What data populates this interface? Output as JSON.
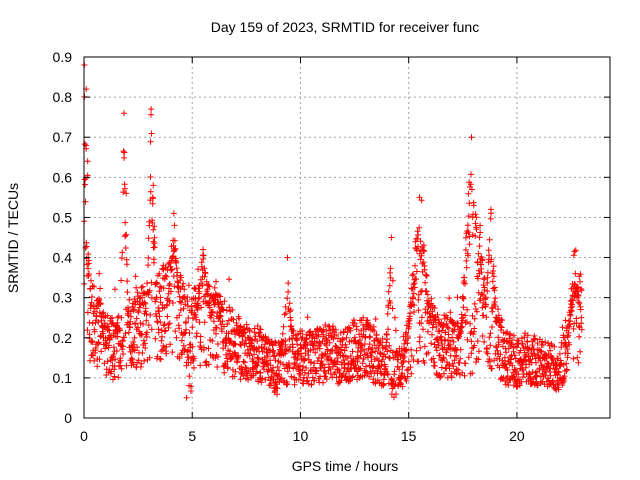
{
  "chart_data": {
    "type": "scatter",
    "title": "Day 159 of 2023, SRMTID for receiver func",
    "xlabel": "GPS time / hours",
    "ylabel": "SRMTID / TECUs",
    "xlim": [
      0,
      24.3
    ],
    "ylim": [
      0,
      0.9
    ],
    "xticks": [
      0,
      5,
      10,
      15,
      20
    ],
    "yticks": [
      0,
      0.1,
      0.2,
      0.3,
      0.4,
      0.5,
      0.6,
      0.7,
      0.8,
      0.9
    ],
    "grid": true,
    "marker": "plus",
    "color": "#ff0000",
    "series": [
      {
        "name": "SRMTID",
        "baseline_profile": [
          [
            0.0,
            0.36
          ],
          [
            0.15,
            0.3
          ],
          [
            0.3,
            0.25
          ],
          [
            0.5,
            0.22
          ],
          [
            0.8,
            0.2
          ],
          [
            1.0,
            0.18
          ],
          [
            1.5,
            0.17
          ],
          [
            2.0,
            0.2
          ],
          [
            2.5,
            0.22
          ],
          [
            3.0,
            0.24
          ],
          [
            3.5,
            0.26
          ],
          [
            4.0,
            0.27
          ],
          [
            4.5,
            0.25
          ],
          [
            5.0,
            0.22
          ],
          [
            5.5,
            0.24
          ],
          [
            6.0,
            0.23
          ],
          [
            6.5,
            0.2
          ],
          [
            7.0,
            0.18
          ],
          [
            7.5,
            0.17
          ],
          [
            8.0,
            0.16
          ],
          [
            8.5,
            0.14
          ],
          [
            9.0,
            0.13
          ],
          [
            9.5,
            0.15
          ],
          [
            10.0,
            0.15
          ],
          [
            10.5,
            0.15
          ],
          [
            11.0,
            0.16
          ],
          [
            11.5,
            0.16
          ],
          [
            12.0,
            0.15
          ],
          [
            12.5,
            0.17
          ],
          [
            13.0,
            0.18
          ],
          [
            13.5,
            0.15
          ],
          [
            14.0,
            0.13
          ],
          [
            14.4,
            0.11
          ],
          [
            14.8,
            0.15
          ],
          [
            15.2,
            0.2
          ],
          [
            15.6,
            0.22
          ],
          [
            16.0,
            0.2
          ],
          [
            16.5,
            0.18
          ],
          [
            17.0,
            0.18
          ],
          [
            17.5,
            0.18
          ],
          [
            18.0,
            0.2
          ],
          [
            18.5,
            0.25
          ],
          [
            19.0,
            0.2
          ],
          [
            19.5,
            0.15
          ],
          [
            20.0,
            0.14
          ],
          [
            20.5,
            0.15
          ],
          [
            21.0,
            0.14
          ],
          [
            21.5,
            0.13
          ],
          [
            22.0,
            0.12
          ],
          [
            22.3,
            0.18
          ],
          [
            22.6,
            0.24
          ],
          [
            23.0,
            0.25
          ]
        ],
        "peaks": [
          {
            "x": 0.02,
            "width": 0.1,
            "y": 0.88
          },
          {
            "x": 0.1,
            "width": 0.05,
            "y": 0.82
          },
          {
            "x": 0.17,
            "width": 0.08,
            "y": 0.64
          },
          {
            "x": 0.7,
            "width": 0.2,
            "y": 0.36
          },
          {
            "x": 1.85,
            "width": 0.2,
            "y": 0.76
          },
          {
            "x": 1.95,
            "width": 0.12,
            "y": 0.56
          },
          {
            "x": 3.1,
            "width": 0.2,
            "y": 0.77
          },
          {
            "x": 3.2,
            "width": 0.15,
            "y": 0.58
          },
          {
            "x": 4.15,
            "width": 0.35,
            "y": 0.51
          },
          {
            "x": 5.5,
            "width": 0.4,
            "y": 0.42
          },
          {
            "x": 6.1,
            "width": 0.3,
            "y": 0.34
          },
          {
            "x": 9.4,
            "width": 0.3,
            "y": 0.4
          },
          {
            "x": 14.2,
            "width": 0.3,
            "y": 0.45
          },
          {
            "x": 15.5,
            "width": 0.6,
            "y": 0.55
          },
          {
            "x": 17.9,
            "width": 0.55,
            "y": 0.7
          },
          {
            "x": 18.3,
            "width": 0.3,
            "y": 0.48
          },
          {
            "x": 18.8,
            "width": 0.3,
            "y": 0.52
          },
          {
            "x": 22.7,
            "width": 0.35,
            "y": 0.36
          }
        ],
        "troughs": [
          {
            "x": 4.85,
            "y": 0.05
          },
          {
            "x": 8.9,
            "y": 0.05
          },
          {
            "x": 14.3,
            "y": 0.05
          },
          {
            "x": 21.9,
            "y": 0.08
          }
        ],
        "x_range": [
          0.0,
          23.0
        ],
        "approx_point_count": 2400
      }
    ]
  }
}
